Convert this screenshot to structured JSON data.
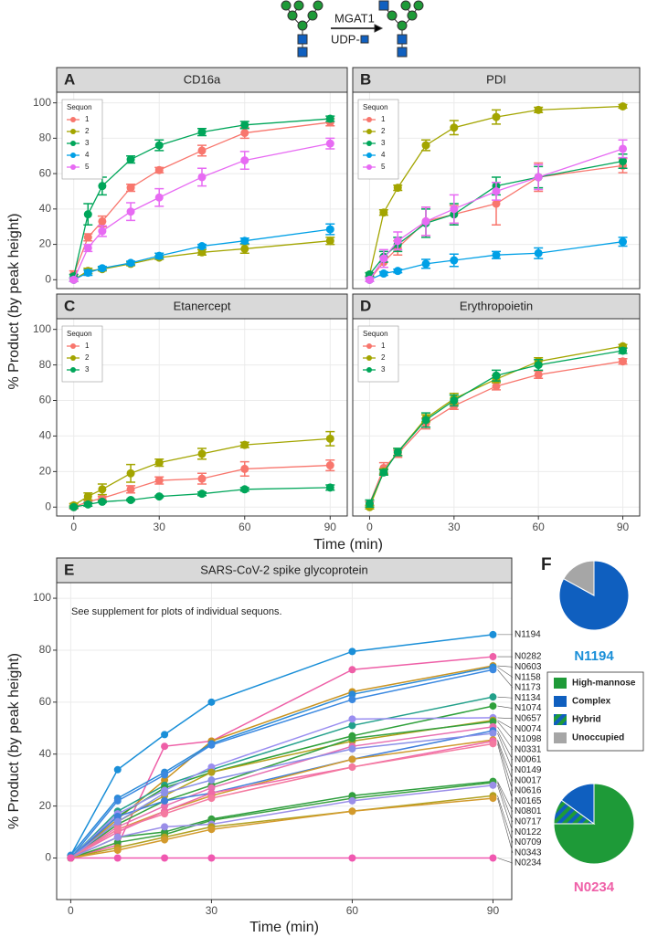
{
  "scheme": {
    "enzyme": "MGAT1",
    "donor": "UDP-"
  },
  "facet_axes": {
    "xlabel": "Time (min)",
    "ylabel": "% Product (by peak height)"
  },
  "chart_data": [
    {
      "type": "line",
      "panel": "A",
      "title": "CD16a",
      "legend_title": "Sequon",
      "legend": "top-left",
      "grid": true,
      "x": [
        0,
        5,
        10,
        20,
        30,
        45,
        60,
        90
      ],
      "xlim": [
        -6,
        96
      ],
      "ylim": [
        -5,
        106
      ],
      "xticks": [
        0,
        30,
        60,
        90
      ],
      "yticks": [
        0,
        20,
        40,
        60,
        80,
        100
      ],
      "series": [
        {
          "name": "1",
          "color": "#F8766D",
          "values": [
            3,
            24,
            33,
            52,
            62,
            73,
            83,
            89
          ],
          "errors": [
            2,
            2,
            3,
            2,
            1.5,
            3,
            3,
            2
          ]
        },
        {
          "name": "2",
          "color": "#A3A500",
          "values": [
            0,
            5,
            6,
            9,
            12.5,
            15.5,
            17.5,
            22
          ],
          "errors": [
            1,
            1.5,
            1,
            1,
            1,
            1.5,
            2.5,
            2
          ]
        },
        {
          "name": "3",
          "color": "#00A65A",
          "values": [
            2,
            37,
            53,
            68,
            76,
            83.5,
            87.5,
            91
          ],
          "errors": [
            1,
            6,
            5,
            2,
            3,
            2,
            2,
            1.5
          ]
        },
        {
          "name": "4",
          "color": "#00A0E6",
          "values": [
            0,
            4,
            6.5,
            9.5,
            13.5,
            19,
            22,
            28.5
          ],
          "errors": [
            1,
            1.5,
            1,
            1,
            1.5,
            1,
            1.5,
            3
          ]
        },
        {
          "name": "5",
          "color": "#E76BF3",
          "values": [
            0,
            18,
            27.5,
            38.5,
            46.5,
            58,
            67.5,
            77
          ],
          "errors": [
            1,
            2,
            3,
            5,
            5,
            5,
            5,
            3
          ]
        }
      ]
    },
    {
      "type": "line",
      "panel": "B",
      "title": "PDI",
      "legend_title": "Sequon",
      "legend": "top-left",
      "grid": true,
      "x": [
        0,
        5,
        10,
        20,
        30,
        45,
        60,
        90
      ],
      "xlim": [
        -6,
        96
      ],
      "ylim": [
        -5,
        106
      ],
      "xticks": [
        0,
        30,
        60,
        90
      ],
      "yticks": [
        0,
        20,
        40,
        60,
        80,
        100
      ],
      "series": [
        {
          "name": "1",
          "color": "#F8766D",
          "values": [
            0,
            10,
            18,
            33,
            37,
            43,
            58,
            64.5
          ],
          "errors": [
            1,
            3,
            4,
            8,
            5,
            12,
            8,
            4
          ]
        },
        {
          "name": "2",
          "color": "#A3A500",
          "values": [
            3,
            38,
            52,
            76,
            86,
            92,
            96,
            98
          ],
          "errors": [
            1,
            1.5,
            1.5,
            3,
            4,
            4,
            1.5,
            1
          ]
        },
        {
          "name": "3",
          "color": "#00A65A",
          "values": [
            3,
            13,
            20,
            32,
            37,
            53,
            58,
            67
          ],
          "errors": [
            1,
            3,
            4,
            8,
            6,
            5,
            6,
            4
          ]
        },
        {
          "name": "4",
          "color": "#00A0E6",
          "values": [
            0,
            3.5,
            5,
            9,
            11,
            14,
            15,
            21.5
          ],
          "errors": [
            1,
            1,
            1,
            2.5,
            3.5,
            2,
            3,
            2.5
          ]
        },
        {
          "name": "5",
          "color": "#E76BF3",
          "values": [
            0,
            12,
            22,
            33,
            40,
            50,
            58,
            74
          ],
          "errors": [
            1,
            5,
            5,
            8,
            8,
            5,
            7,
            5
          ]
        }
      ]
    },
    {
      "type": "line",
      "panel": "C",
      "title": "Etanercept",
      "legend_title": "Sequon",
      "legend": "top-left",
      "grid": true,
      "x": [
        0,
        5,
        10,
        20,
        30,
        45,
        60,
        90
      ],
      "xlim": [
        -6,
        96
      ],
      "ylim": [
        -5,
        106
      ],
      "xticks": [
        0,
        30,
        60,
        90
      ],
      "yticks": [
        0,
        20,
        40,
        60,
        80,
        100
      ],
      "series": [
        {
          "name": "1",
          "color": "#F8766D",
          "values": [
            0,
            3,
            5,
            10,
            15,
            16,
            21.5,
            23.5
          ],
          "errors": [
            1,
            1,
            1,
            2,
            2,
            3,
            4,
            3
          ]
        },
        {
          "name": "2",
          "color": "#A3A500",
          "values": [
            1,
            6,
            10,
            19,
            25,
            30,
            35,
            38.5
          ],
          "errors": [
            1,
            2,
            3,
            5,
            2,
            3,
            1.5,
            4
          ]
        },
        {
          "name": "3",
          "color": "#00A65A",
          "values": [
            0,
            1.5,
            3,
            4,
            6,
            7.5,
            10,
            11
          ],
          "errors": [
            0.5,
            1,
            0.5,
            0.5,
            0.5,
            1,
            1,
            1.5
          ]
        }
      ]
    },
    {
      "type": "line",
      "panel": "D",
      "title": "Erythropoietin",
      "legend_title": "Sequon",
      "legend": "top-left",
      "grid": true,
      "x": [
        0,
        5,
        10,
        20,
        30,
        45,
        60,
        90
      ],
      "xlim": [
        -6,
        96
      ],
      "ylim": [
        -5,
        106
      ],
      "xticks": [
        0,
        30,
        60,
        90
      ],
      "yticks": [
        0,
        20,
        40,
        60,
        80,
        100
      ],
      "series": [
        {
          "name": "1",
          "color": "#F8766D",
          "values": [
            2,
            22,
            30,
            47,
            57,
            68,
            74.5,
            82
          ],
          "errors": [
            1,
            3,
            2,
            3,
            2,
            2,
            2,
            1.5
          ]
        },
        {
          "name": "2",
          "color": "#A3A500",
          "values": [
            0,
            20,
            31,
            50,
            61,
            72,
            82,
            90.5
          ],
          "errors": [
            1,
            1.5,
            2,
            2,
            3,
            2,
            2,
            1
          ]
        },
        {
          "name": "3",
          "color": "#00A65A",
          "values": [
            2,
            19.5,
            31,
            49,
            60,
            74,
            80,
            88
          ],
          "errors": [
            2,
            1.5,
            2,
            4,
            3,
            3,
            3,
            1.5
          ]
        }
      ]
    },
    {
      "type": "line",
      "panel": "E",
      "title": "SARS-CoV-2 spike glycoprotein",
      "annotation": "See supplement for plots of individual sequons.",
      "xlabel": "Time (min)",
      "ylabel": "% Product (by peak height)",
      "grid": true,
      "end_labels": true,
      "x": [
        0,
        10,
        20,
        30,
        60,
        90
      ],
      "xlim": [
        -3,
        94
      ],
      "ylim": [
        -16,
        106
      ],
      "xticks": [
        0,
        30,
        60,
        90
      ],
      "yticks": [
        0,
        20,
        40,
        60,
        80,
        100
      ],
      "series": [
        {
          "name": "N1194",
          "color": "#1a8fd8",
          "values": [
            1,
            34,
            47.5,
            60,
            79.5,
            86
          ]
        },
        {
          "name": "N0282",
          "color": "#ee5fa7",
          "values": [
            0,
            5,
            43,
            45,
            72.5,
            77.5
          ]
        },
        {
          "name": "N0603",
          "color": "#c9931f",
          "values": [
            0,
            15,
            30,
            45,
            64,
            74
          ]
        },
        {
          "name": "N1158",
          "color": "#2a8ad8",
          "values": [
            1,
            23,
            33,
            44,
            63,
            73.5
          ]
        },
        {
          "name": "N1173",
          "color": "#3a88e0",
          "values": [
            0,
            22,
            32,
            43.5,
            61,
            72.5
          ]
        },
        {
          "name": "N1134",
          "color": "#22a08a",
          "values": [
            0,
            18,
            28,
            34,
            51,
            62
          ]
        },
        {
          "name": "N1074",
          "color": "#2ea03a",
          "values": [
            0,
            16,
            27,
            33,
            47,
            58.5
          ]
        },
        {
          "name": "N0657",
          "color": "#9a8ef0",
          "values": [
            0,
            17,
            26,
            35,
            53.5,
            54
          ]
        },
        {
          "name": "N0074",
          "color": "#b4a01a",
          "values": [
            0,
            14,
            24,
            33,
            45,
            53
          ]
        },
        {
          "name": "N1098",
          "color": "#35a040",
          "values": [
            0,
            13,
            22,
            28,
            46,
            52.5
          ]
        },
        {
          "name": "N0331",
          "color": "#e86fb0",
          "values": [
            0,
            12,
            20,
            27,
            43,
            50.5
          ]
        },
        {
          "name": "N0061",
          "color": "#3f7fdb",
          "values": [
            0,
            16,
            22,
            25,
            38,
            49
          ]
        },
        {
          "name": "N0149",
          "color": "#8a90e8",
          "values": [
            0,
            14,
            25,
            30,
            42,
            48
          ]
        },
        {
          "name": "N0017",
          "color": "#d09a30",
          "values": [
            0,
            11,
            18,
            24,
            38,
            45.5
          ]
        },
        {
          "name": "N0616",
          "color": "#f06aa8",
          "values": [
            0,
            10,
            18,
            25,
            35,
            45
          ]
        },
        {
          "name": "N0165",
          "color": "#f47aa0",
          "values": [
            0,
            11,
            17,
            23,
            35,
            44
          ]
        },
        {
          "name": "N0801",
          "color": "#2e9e3e",
          "values": [
            0,
            8,
            10,
            15,
            24,
            29.5
          ]
        },
        {
          "name": "N0717",
          "color": "#3aa040",
          "values": [
            0,
            6,
            9,
            14.5,
            23,
            29
          ]
        },
        {
          "name": "N0122",
          "color": "#9a8ee8",
          "values": [
            0,
            8,
            12,
            13,
            22,
            28
          ]
        },
        {
          "name": "N0709",
          "color": "#b0a020",
          "values": [
            0,
            4,
            8,
            12,
            18,
            24
          ]
        },
        {
          "name": "N0343",
          "color": "#d39a2c",
          "values": [
            0,
            3,
            7,
            11,
            18,
            23
          ]
        },
        {
          "name": "N0234",
          "color": "#f058b0",
          "values": [
            0,
            0,
            0,
            0,
            0,
            0
          ]
        }
      ]
    },
    {
      "type": "pie",
      "panel": "F",
      "categories": [
        "High-mannose",
        "Complex",
        "Hybrid",
        "Unoccupied"
      ],
      "colors": [
        "#1e9a38",
        "#0f5fbf",
        "#1e9a38",
        "#a6a6a6"
      ],
      "hatched": [
        false,
        false,
        true,
        false
      ],
      "pies": [
        {
          "name": "N1194",
          "color": "#1a8fd8",
          "values": [
            0,
            83,
            0,
            17
          ]
        },
        {
          "name": "N0234",
          "color": "#ef5fa7",
          "values": [
            75,
            15,
            10,
            0
          ]
        }
      ]
    }
  ]
}
